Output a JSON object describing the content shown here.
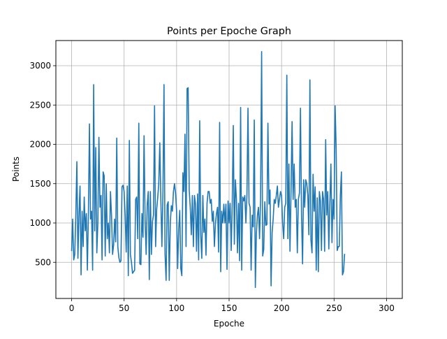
{
  "chart_data": {
    "type": "line",
    "title": "Points per Epoche Graph",
    "xlabel": "Epoche",
    "ylabel": "Points",
    "xlim": [
      -15,
      315
    ],
    "ylim": [
      40,
      3320
    ],
    "grid": true,
    "x_ticks": [
      0,
      50,
      100,
      150,
      200,
      250,
      300
    ],
    "y_ticks": [
      500,
      1000,
      1500,
      2000,
      2500,
      3000
    ],
    "line_color": "#1f77b4",
    "series": [
      {
        "x_start": 0,
        "x_step": 1,
        "values": [
          650,
          1050,
          530,
          600,
          1100,
          1780,
          550,
          1100,
          1470,
          340,
          1150,
          700,
          1330,
          900,
          1120,
          400,
          1130,
          2260,
          1050,
          1150,
          400,
          2760,
          900,
          1960,
          620,
          1000,
          2090,
          1200,
          1350,
          530,
          1650,
          1600,
          580,
          1500,
          800,
          1000,
          620,
          1400,
          1100,
          600,
          720,
          1050,
          760,
          2080,
          700,
          560,
          500,
          520,
          1460,
          1480,
          1400,
          1100,
          630,
          1470,
          330,
          2050,
          600,
          500,
          360,
          380,
          400,
          1300,
          1330,
          800,
          2270,
          480,
          470,
          1120,
          820,
          2110,
          1030,
          600,
          1230,
          1400,
          280,
          1400,
          600,
          1020,
          1100,
          2490,
          700,
          1170,
          1320,
          1500,
          2020,
          1290,
          700,
          1400,
          2760,
          600,
          270,
          1230,
          1270,
          270,
          1000,
          1220,
          1150,
          1400,
          1500,
          1380,
          1150,
          420,
          920,
          1160,
          420,
          330,
          1640,
          1400,
          2130,
          700,
          2710,
          2720,
          1420,
          1200,
          850,
          1350,
          700,
          1350,
          1240,
          640,
          1370,
          530,
          2300,
          850,
          550,
          1350,
          880,
          1050,
          590,
          1250,
          1400,
          1400,
          1250,
          1300,
          1020,
          1150,
          700,
          990,
          1120,
          1200,
          630,
          2280,
          380,
          1150,
          1000,
          1240,
          1000,
          1240,
          410,
          1280,
          1000,
          1250,
          650,
          1250,
          2240,
          730,
          1550,
          1300,
          620,
          1250,
          520,
          2470,
          400,
          1330,
          1280,
          1350,
          1000,
          1350,
          2460,
          1250,
          1200,
          400,
          1100,
          950,
          2310,
          180,
          860,
          1100,
          1200,
          800,
          1300,
          3180,
          580,
          660,
          1270,
          970,
          980,
          2270,
          1240,
          1420,
          200,
          880,
          1050,
          1300,
          1250,
          1350,
          1470,
          1200,
          1300,
          1400,
          1350,
          1000,
          800,
          1200,
          1250,
          2880,
          800,
          1750,
          640,
          1400,
          2290,
          1300,
          1750,
          1200,
          1300,
          620,
          1300,
          1380,
          2460,
          1100,
          480,
          1550,
          1200,
          1550,
          1500,
          1350,
          850,
          2820,
          780,
          620,
          1620,
          1150,
          1460,
          400,
          1320,
          380,
          1400,
          1280,
          650,
          1400,
          1300,
          640,
          2060,
          1100,
          1400,
          670,
          1250,
          1750,
          750,
          1300,
          1050,
          2490,
          1950,
          650,
          700,
          700,
          1350,
          1650,
          340,
          380,
          600
        ]
      }
    ]
  }
}
